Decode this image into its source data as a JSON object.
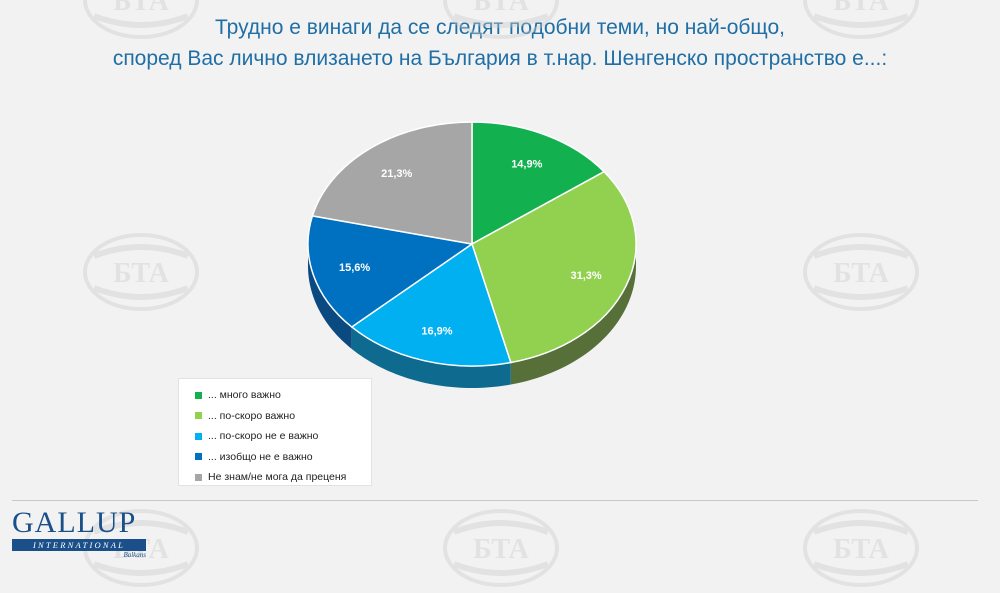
{
  "title": {
    "line1": "Трудно е винаги да се следят подобни теми, но най-общо,",
    "line2": "според Вас лично влизането на България в т.нар. Шенгенско пространство е...:"
  },
  "chart_data": {
    "type": "pie",
    "categories": [
      "... много важно",
      "... по-скоро важно",
      "... по-скоро не е важно",
      "... изобщо не е важно",
      "Не знам/не мога да преценя"
    ],
    "values": [
      14.9,
      31.3,
      16.9,
      15.6,
      21.3
    ],
    "labels": [
      "14,9%",
      "31,3%",
      "16,9%",
      "15,6%",
      "21,3%"
    ],
    "colors": [
      "#12b04f",
      "#92d050",
      "#00b0f0",
      "#0070c0",
      "#a6a6a6"
    ],
    "side_colors": [
      "#0b6a30",
      "#57703a",
      "#0f6a90",
      "#0a4a80",
      "#6e6e6e"
    ],
    "legend_position": "bottom-left",
    "style": "3d"
  },
  "watermark": {
    "text": "БТА"
  },
  "logo": {
    "main": "GALLUP",
    "band": "INTERNATIONAL",
    "sub": "Balkans"
  }
}
